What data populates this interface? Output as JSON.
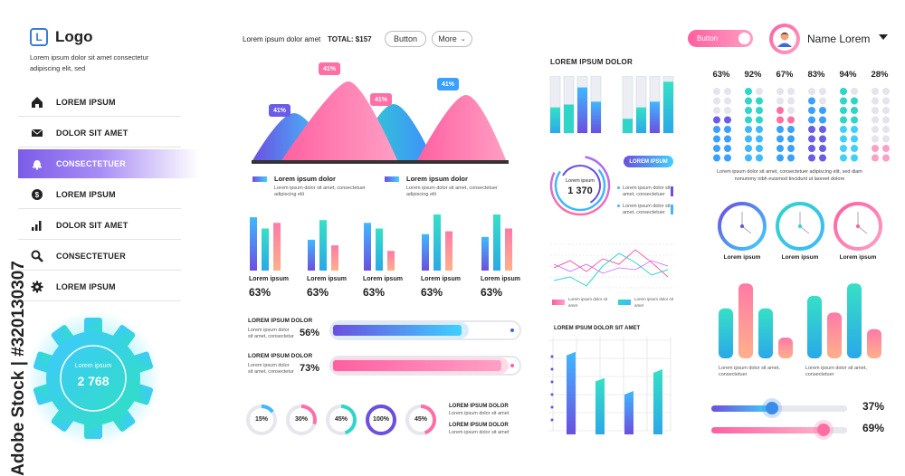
{
  "logo": {
    "text": "Logo",
    "tagline": "Lorem ipsum dolor sit amet consectetur adipiscing elit, sed"
  },
  "header": {
    "title": "Lorem ipsum dolor amet",
    "total_label": "TOTAL: $157",
    "button_label": "Button",
    "more_label": "More",
    "toggle_label": "Button",
    "user_name": "Name Lorem"
  },
  "sidebar": {
    "items": [
      {
        "label": "LOREM IPSUM",
        "icon": "home-icon"
      },
      {
        "label": "DOLOR SIT AMET",
        "icon": "mail-icon"
      },
      {
        "label": "CONSECTETUER",
        "icon": "bell-icon",
        "active": true
      },
      {
        "label": "LOREM IPSUM",
        "icon": "dollar-icon"
      },
      {
        "label": "DOLOR SIT AMET",
        "icon": "bar-chart-icon"
      },
      {
        "label": "CONSECTETUER",
        "icon": "search-icon"
      },
      {
        "label": "LOREM IPSUM",
        "icon": "gear-icon"
      }
    ]
  },
  "gear_widget": {
    "label": "Lorem ipsum",
    "value": "2 768"
  },
  "mountain": {
    "tags": [
      "41%",
      "41%",
      "41%",
      "41%"
    ],
    "legend": [
      {
        "title": "Lorem ipsum dolor",
        "text": "Lorem ipsum dolor sit amet, consectetuer adipiscing elit"
      },
      {
        "title": "Lorem ipsum dolor",
        "text": "Lorem ipsum dolor sit amet, consectetuer adipiscing elit"
      }
    ]
  },
  "bar_groups": [
    {
      "label": "Lorem ipsum",
      "pct": "63%",
      "values": [
        0.95,
        0.75,
        0.85
      ]
    },
    {
      "label": "Lorem ipsum",
      "pct": "63%",
      "values": [
        0.55,
        0.9,
        0.45
      ]
    },
    {
      "label": "Lorem ipsum",
      "pct": "63%",
      "values": [
        0.85,
        0.75,
        0.35
      ]
    },
    {
      "label": "Lorem ipsum",
      "pct": "63%",
      "values": [
        0.65,
        1.0,
        0.7
      ]
    },
    {
      "label": "Lorem ipsum",
      "pct": "63%",
      "values": [
        0.6,
        1.0,
        0.75
      ]
    }
  ],
  "progress": [
    {
      "title": "LOREM IPSUM DOLOR",
      "text": "Lorem ipsum dolor sit amet, consectetur",
      "pct": "56%",
      "value": 0.56
    },
    {
      "title": "LOREM IPSUM DOLOR",
      "text": "Lorem ipsum dolor sit amet, consectetur",
      "pct": "73%",
      "value": 0.73
    }
  ],
  "donuts": [
    {
      "label": "15%",
      "value": 0.15
    },
    {
      "label": "30%",
      "value": 0.3
    },
    {
      "label": "45%",
      "value": 0.45
    },
    {
      "label": "100%",
      "value": 1.0
    },
    {
      "label": "45%",
      "value": 0.45
    }
  ],
  "donut_legend": [
    {
      "title": "LOREM IPSUM DOLOR",
      "text": "Lorem ipsum dolor sit amet"
    },
    {
      "title": "LOREM IPSUM DOLOR",
      "text": "Lorem ipsum dolor sit amet"
    }
  ],
  "mid": {
    "title": "LOREM IPSUM DOLOR",
    "stacks_left": [
      0.45,
      0.5,
      0.8,
      0.55
    ],
    "stacks_right": [
      0.25,
      0.45,
      0.55,
      0.9
    ],
    "ring": {
      "label": "Lorem ipsum",
      "value": "1 370"
    },
    "ring_tag": "LOREM IPSUM",
    "ring_items": [
      "Lorem ipsum dolor sit amet, consectetuer",
      "Lorem ipsum dolor sit amet, consectetuer"
    ],
    "line_legend": [
      "Lorem ipsum dolor sit amet",
      "Lorem ipsum dolor sit amet"
    ],
    "grid_title": "LOREM IPSUM DOLOR SIT AMET",
    "grid_bars": [
      0.95,
      0.65,
      0.5,
      0.75
    ]
  },
  "right": {
    "dots": [
      {
        "pct": "63%",
        "value": 0.63
      },
      {
        "pct": "92%",
        "value": 0.92
      },
      {
        "pct": "67%",
        "value": 0.67
      },
      {
        "pct": "83%",
        "value": 0.83
      },
      {
        "pct": "94%",
        "value": 0.94
      },
      {
        "pct": "28%",
        "value": 0.28
      }
    ],
    "dots_caption": "Lorem ipsum dolor sit amet, consectetuer adipiscing elit, sed diam nonummy nibh euismod tincidunt ut laoreet dolore",
    "clocks": [
      "Lorem ipsum",
      "Lorem ipsum",
      "Lorem ipsum"
    ],
    "bar_captions": [
      "Lorem ipsum dolor sit amet, consectetuer",
      "Lorem ipsum dolor sit amet, consectetuer"
    ],
    "bars_left": [
      0.6,
      0.9,
      0.6,
      0.25
    ],
    "bars_right": [
      0.75,
      0.55,
      0.9,
      0.35
    ],
    "sliders": [
      {
        "pct": "37%",
        "value": 0.37
      },
      {
        "pct": "69%",
        "value": 0.69
      }
    ]
  },
  "colors": {
    "purple": "#6b5ce7",
    "blue": "#3aa0ff",
    "teal": "#2fd5c9",
    "pink": "#ff6fa6",
    "grey": "#e4e4ec"
  }
}
